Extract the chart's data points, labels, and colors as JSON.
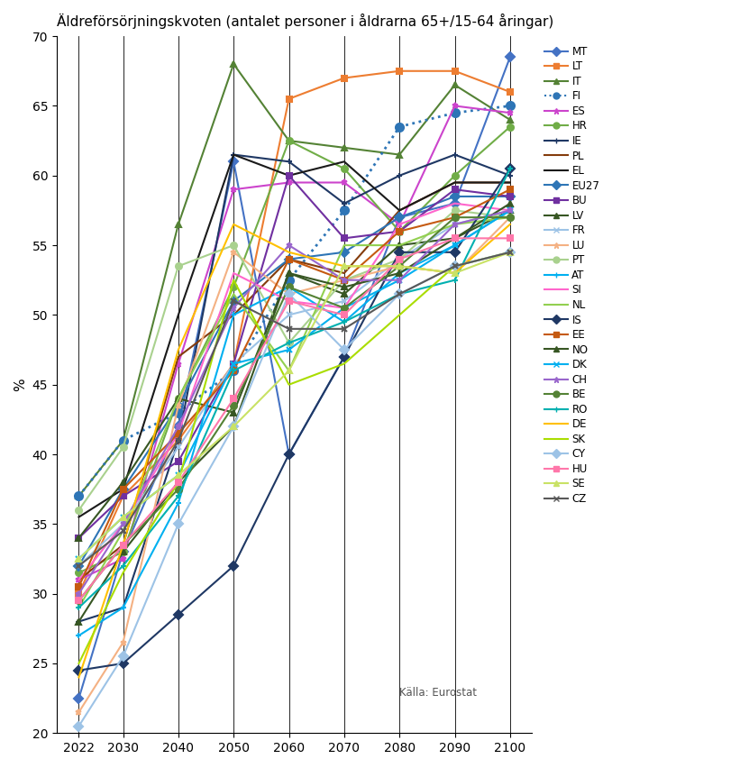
{
  "title": "Äldreförsörjningskvoten (antalet personer i åldrarna 65+/15-64 åringar)",
  "ylabel": "%",
  "source": "Källa: Eurostat",
  "years": [
    2022,
    2030,
    2040,
    2050,
    2060,
    2070,
    2080,
    2090,
    2100
  ],
  "series": [
    {
      "label": "MT",
      "color": "#4472c4",
      "marker": "D",
      "linestyle": "-",
      "data": [
        22.5,
        33.0,
        42.0,
        61.0,
        40.0,
        47.0,
        57.0,
        58.0,
        68.5
      ]
    },
    {
      "label": "LT",
      "color": "#ed7d31",
      "marker": "s",
      "linestyle": "-",
      "data": [
        30.0,
        37.0,
        41.0,
        46.5,
        65.5,
        67.0,
        67.5,
        67.5,
        66.0
      ]
    },
    {
      "label": "IT",
      "color": "#548235",
      "marker": "^",
      "linestyle": "-",
      "data": [
        37.0,
        41.0,
        56.5,
        68.0,
        62.5,
        62.0,
        61.5,
        66.5,
        64.0
      ]
    },
    {
      "label": "FI",
      "color": "#2e75b6",
      "marker": "o",
      "linestyle": ":",
      "data": [
        37.0,
        41.0,
        43.0,
        46.0,
        52.5,
        57.5,
        63.5,
        64.5,
        65.0
      ]
    },
    {
      "label": "ES",
      "color": "#cc44cc",
      "marker": "*",
      "linestyle": "-",
      "data": [
        31.0,
        32.5,
        46.5,
        59.0,
        59.5,
        59.5,
        56.5,
        65.0,
        64.5
      ]
    },
    {
      "label": "HR",
      "color": "#70ad47",
      "marker": "o",
      "linestyle": "-",
      "data": [
        31.5,
        33.0,
        44.0,
        52.0,
        62.5,
        60.5,
        56.0,
        60.0,
        63.5
      ]
    },
    {
      "label": "IE",
      "color": "#1f3864",
      "marker": "+",
      "linestyle": "-",
      "data": [
        28.0,
        29.0,
        41.0,
        61.5,
        61.0,
        58.0,
        60.0,
        61.5,
        60.0
      ]
    },
    {
      "label": "PL",
      "color": "#843c0c",
      "marker": "None",
      "linestyle": "-",
      "data": [
        31.0,
        33.5,
        47.0,
        50.0,
        54.0,
        53.0,
        57.5,
        59.5,
        59.5
      ]
    },
    {
      "label": "EL",
      "color": "#1a1a1a",
      "marker": "None",
      "linestyle": "-",
      "data": [
        35.5,
        37.5,
        50.0,
        61.5,
        60.0,
        61.0,
        57.5,
        59.5,
        59.5
      ]
    },
    {
      "label": "EU27",
      "color": "#2e75b6",
      "marker": "D",
      "linestyle": "-",
      "data": [
        32.0,
        37.5,
        43.5,
        51.0,
        54.0,
        54.5,
        57.0,
        58.5,
        58.5
      ]
    },
    {
      "label": "BU",
      "color": "#7030a0",
      "marker": "s",
      "linestyle": "-",
      "data": [
        34.0,
        37.0,
        39.5,
        46.5,
        60.0,
        55.5,
        56.0,
        59.0,
        58.5
      ]
    },
    {
      "label": "LV",
      "color": "#375623",
      "marker": "^",
      "linestyle": "-",
      "data": [
        34.0,
        38.0,
        44.0,
        43.0,
        53.0,
        51.5,
        55.0,
        55.5,
        57.5
      ]
    },
    {
      "label": "FR",
      "color": "#9dc3e6",
      "marker": "x",
      "linestyle": "-",
      "data": [
        32.0,
        35.0,
        40.5,
        46.5,
        50.0,
        51.0,
        54.0,
        56.5,
        57.5
      ]
    },
    {
      "label": "LU",
      "color": "#f4b183",
      "marker": "*",
      "linestyle": "-",
      "data": [
        21.5,
        26.5,
        43.5,
        54.5,
        51.5,
        52.5,
        53.5,
        53.0,
        57.0
      ]
    },
    {
      "label": "PT",
      "color": "#a9d18e",
      "marker": "o",
      "linestyle": "-",
      "data": [
        36.0,
        40.5,
        53.5,
        55.0,
        48.0,
        52.5,
        54.0,
        57.5,
        57.0
      ]
    },
    {
      "label": "AT",
      "color": "#00b0f0",
      "marker": "+",
      "linestyle": "-",
      "data": [
        27.0,
        29.0,
        36.5,
        50.0,
        52.0,
        49.5,
        53.0,
        55.0,
        57.5
      ]
    },
    {
      "label": "SI",
      "color": "#ff66cc",
      "marker": "None",
      "linestyle": "-",
      "data": [
        31.0,
        35.0,
        41.5,
        53.0,
        51.0,
        50.5,
        56.5,
        58.0,
        57.5
      ]
    },
    {
      "label": "NL",
      "color": "#92d050",
      "marker": "None",
      "linestyle": "-",
      "data": [
        29.0,
        34.5,
        44.0,
        51.5,
        46.0,
        55.0,
        55.0,
        56.5,
        57.0
      ]
    },
    {
      "label": "IS",
      "color": "#1f3864",
      "marker": "D",
      "linestyle": "-",
      "data": [
        24.5,
        25.0,
        28.5,
        32.0,
        40.0,
        47.0,
        54.5,
        54.5,
        60.5
      ]
    },
    {
      "label": "EE",
      "color": "#c55a11",
      "marker": "s",
      "linestyle": "-",
      "data": [
        30.5,
        37.5,
        41.5,
        46.0,
        54.0,
        52.5,
        56.0,
        57.0,
        59.0
      ]
    },
    {
      "label": "NO",
      "color": "#375623",
      "marker": "^",
      "linestyle": "-",
      "data": [
        28.0,
        33.0,
        38.0,
        42.0,
        53.0,
        52.0,
        53.0,
        55.5,
        58.0
      ]
    },
    {
      "label": "DK",
      "color": "#00b0f0",
      "marker": "x",
      "linestyle": "-",
      "data": [
        32.5,
        35.5,
        38.5,
        46.5,
        47.5,
        50.5,
        52.5,
        55.0,
        57.5
      ]
    },
    {
      "label": "CH",
      "color": "#9966cc",
      "marker": "*",
      "linestyle": "-",
      "data": [
        30.0,
        35.0,
        42.0,
        50.5,
        55.0,
        52.5,
        52.5,
        56.5,
        57.5
      ]
    },
    {
      "label": "BE",
      "color": "#548235",
      "marker": "o",
      "linestyle": "-",
      "data": [
        29.5,
        33.5,
        37.5,
        43.5,
        52.0,
        50.5,
        53.5,
        57.0,
        57.0
      ]
    },
    {
      "label": "RO",
      "color": "#00b0b0",
      "marker": "+",
      "linestyle": "-",
      "data": [
        29.0,
        32.0,
        37.0,
        46.0,
        48.0,
        49.5,
        51.5,
        52.5,
        60.5
      ]
    },
    {
      "label": "DE",
      "color": "#ffc000",
      "marker": "None",
      "linestyle": "-",
      "data": [
        24.0,
        33.5,
        47.5,
        56.5,
        54.5,
        53.5,
        53.5,
        53.0,
        56.5
      ]
    },
    {
      "label": "SK",
      "color": "#aadd00",
      "marker": "None",
      "linestyle": "-",
      "data": [
        25.0,
        31.5,
        38.0,
        52.5,
        45.0,
        46.5,
        50.0,
        53.5,
        54.5
      ]
    },
    {
      "label": "CY",
      "color": "#9dc3e6",
      "marker": "D",
      "linestyle": "-",
      "data": [
        20.5,
        25.5,
        35.0,
        42.0,
        51.5,
        47.5,
        51.5,
        53.5,
        54.5
      ]
    },
    {
      "label": "HU",
      "color": "#ff77aa",
      "marker": "s",
      "linestyle": "-",
      "data": [
        29.5,
        33.5,
        38.0,
        44.0,
        51.0,
        50.0,
        54.0,
        55.5,
        55.5
      ]
    },
    {
      "label": "SE",
      "color": "#c9e265",
      "marker": "^",
      "linestyle": "-",
      "data": [
        32.5,
        35.5,
        38.5,
        42.0,
        46.0,
        53.5,
        53.5,
        53.0,
        54.5
      ]
    },
    {
      "label": "CZ",
      "color": "#595959",
      "marker": "x",
      "linestyle": "-",
      "data": [
        32.0,
        34.5,
        41.0,
        51.0,
        49.0,
        49.0,
        51.5,
        53.5,
        54.5
      ]
    }
  ]
}
